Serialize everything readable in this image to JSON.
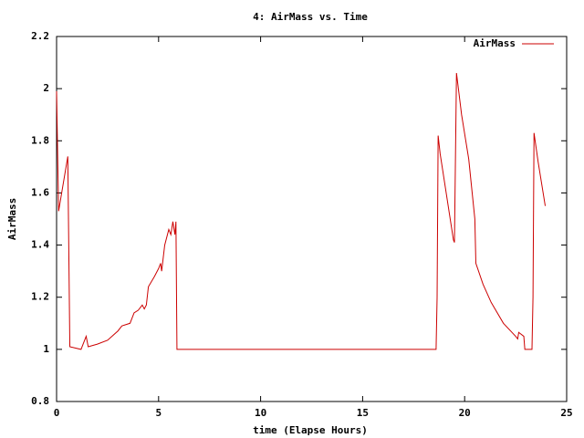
{
  "chart_data": {
    "type": "line",
    "title": "4: AirMass vs. Time",
    "x_label": "time (Elapse Hours)",
    "y_label": "AirMass",
    "xlim": [
      0,
      25
    ],
    "xticks": [
      0,
      5,
      10,
      15,
      20,
      25
    ],
    "ylim": [
      0.8,
      2.2
    ],
    "yticks": [
      0.8,
      1,
      1.2,
      1.4,
      1.6,
      1.8,
      2,
      2.2
    ],
    "grid": false,
    "legend": "upper right",
    "series": [
      {
        "name": "AirMass",
        "color": "#cc0000",
        "x": [
          0,
          0.1,
          0.55,
          0.65,
          1.2,
          1.45,
          1.55,
          2.0,
          2.5,
          3.0,
          3.2,
          3.6,
          3.8,
          4.0,
          4.2,
          4.3,
          4.4,
          4.5,
          4.8,
          5.0,
          5.1,
          5.15,
          5.3,
          5.5,
          5.6,
          5.7,
          5.8,
          5.85,
          5.9,
          18.6,
          18.65,
          18.7,
          18.8,
          19.45,
          19.5,
          19.6,
          19.85,
          20.2,
          20.5,
          20.55,
          20.9,
          21.3,
          21.9,
          22.5,
          22.6,
          22.65,
          22.9,
          22.95,
          23.3,
          23.35,
          23.4,
          23.6,
          23.95
        ],
        "values": [
          1.99,
          1.53,
          1.74,
          1.01,
          1.0,
          1.05,
          1.01,
          1.02,
          1.035,
          1.07,
          1.09,
          1.1,
          1.14,
          1.15,
          1.17,
          1.155,
          1.17,
          1.24,
          1.28,
          1.31,
          1.33,
          1.3,
          1.4,
          1.46,
          1.44,
          1.49,
          1.44,
          1.49,
          1.0,
          1.0,
          1.2,
          1.82,
          1.75,
          1.42,
          1.41,
          2.06,
          1.9,
          1.73,
          1.5,
          1.33,
          1.25,
          1.18,
          1.1,
          1.05,
          1.04,
          1.065,
          1.05,
          1.0,
          1.0,
          1.2,
          1.83,
          1.72,
          1.55
        ]
      }
    ]
  }
}
